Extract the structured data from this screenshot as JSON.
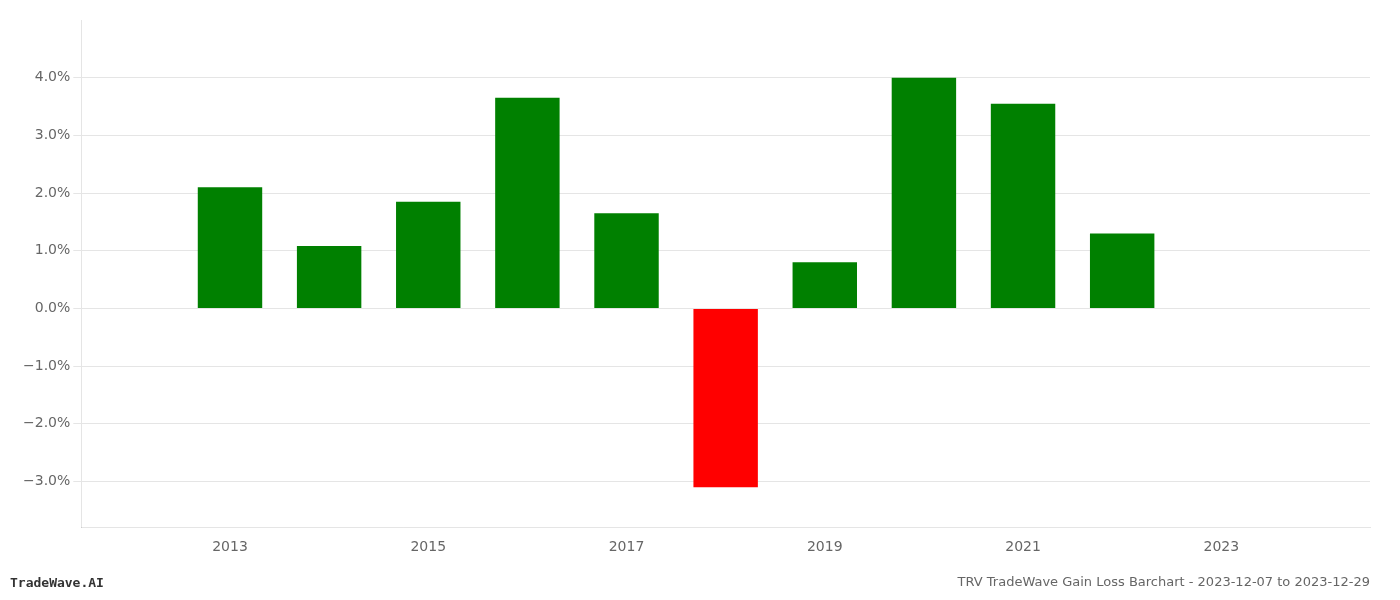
{
  "chart_data": {
    "type": "bar",
    "title": "TRV TradeWave Gain Loss Barchart - 2023-12-07 to 2023-12-29",
    "annotations": [
      "TradeWave.AI"
    ],
    "x": [
      2013,
      2014,
      2015,
      2016,
      2017,
      2018,
      2019,
      2020,
      2021,
      2022
    ],
    "values": [
      0.021,
      0.0108,
      0.0185,
      0.0365,
      0.0165,
      -0.031,
      0.008,
      0.04,
      0.0355,
      0.013
    ],
    "colors": [
      "#008000",
      "#008000",
      "#008000",
      "#008000",
      "#008000",
      "#ff0000",
      "#008000",
      "#008000",
      "#008000",
      "#008000"
    ],
    "xlim": [
      2011.5,
      2024.5
    ],
    "ylim": [
      -0.038,
      0.05
    ],
    "xticks": [
      2013,
      2015,
      2017,
      2019,
      2021,
      2023
    ],
    "yticks": [
      {
        "value": -0.03,
        "label": "−3.0%"
      },
      {
        "value": -0.02,
        "label": "−2.0%"
      },
      {
        "value": -0.01,
        "label": "−1.0%"
      },
      {
        "value": 0.0,
        "label": "0.0%"
      },
      {
        "value": 0.01,
        "label": "1.0%"
      },
      {
        "value": 0.02,
        "label": "2.0%"
      },
      {
        "value": 0.03,
        "label": "3.0%"
      },
      {
        "value": 0.04,
        "label": "4.0%"
      }
    ],
    "grid": true
  }
}
